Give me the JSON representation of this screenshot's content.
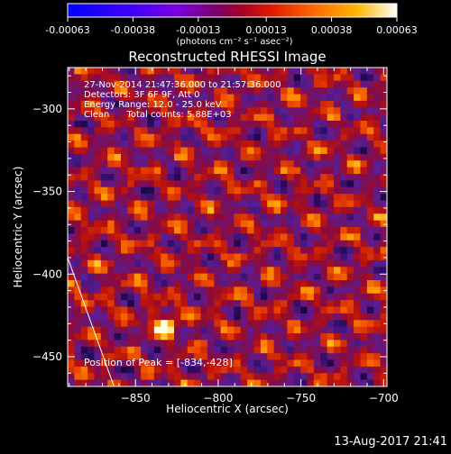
{
  "chart_data": {
    "type": "heatmap",
    "title": "Reconstructed RHESSI Image",
    "xlabel": "Heliocentric X (arcsec)",
    "ylabel": "Heliocentric Y (arcsec)",
    "xlim": [
      -891,
      -698
    ],
    "ylim": [
      -468,
      -275
    ],
    "xticks": [
      -850,
      -800,
      -750,
      -700
    ],
    "yticks": [
      -300,
      -350,
      -400,
      -450
    ],
    "colorbar": {
      "ticks": [
        -0.00063,
        -0.00038,
        -0.00013,
        0.00013,
        0.00038,
        0.00063
      ],
      "tick_labels": [
        "-0.00063",
        "-0.00038",
        "-0.00013",
        "0.00013",
        "0.00038",
        "0.00063"
      ],
      "unit_label": "(photons cm⁻² s⁻¹ asec⁻²)",
      "range": [
        -0.00063,
        0.00063
      ]
    },
    "annotations": [
      "27-Nov-2014 21:47:36.000 to 21:57:36.000",
      "Detectors: 3F 6F 9F, Att 0",
      "Energy Range: 12.0 - 25.0 keV",
      "Clean      Total counts: 5.88E+03"
    ],
    "peak_label": "Position of Peak = [-834,-428]",
    "peak": {
      "x": -834,
      "y": -428
    },
    "limb_line": [
      {
        "x": -891,
        "y": -390
      },
      {
        "x": -863,
        "y": -468
      }
    ],
    "colors": {
      "background": "#000000",
      "text": "#ffffff"
    }
  },
  "footer": {
    "timestamp": "13-Aug-2017 21:41"
  }
}
